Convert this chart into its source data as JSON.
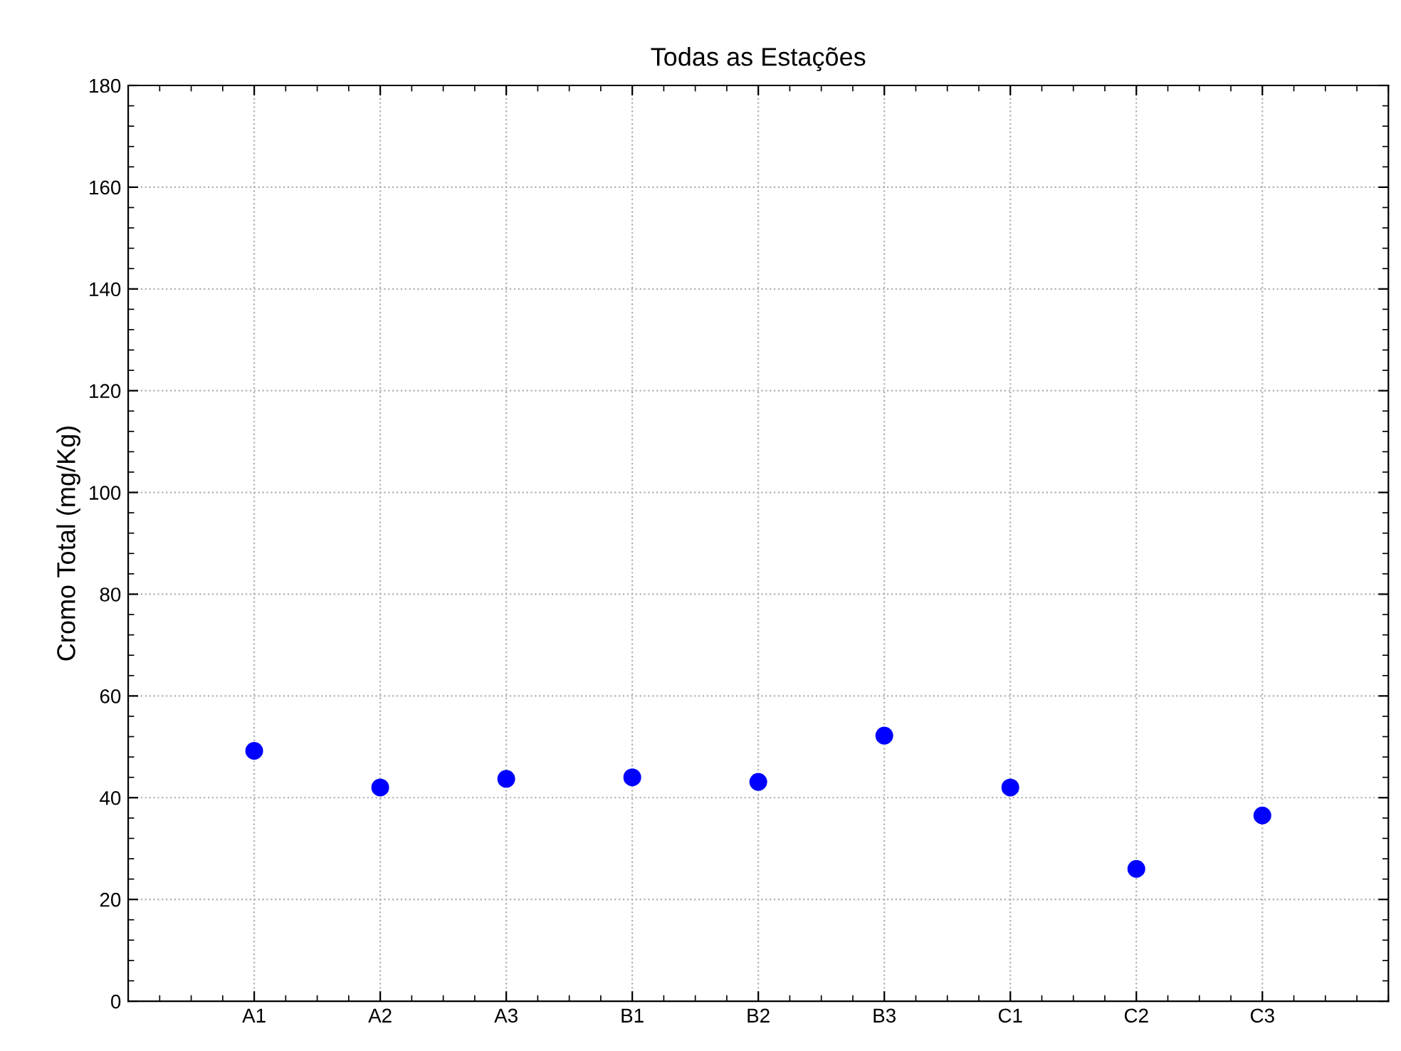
{
  "chart_data": {
    "type": "scatter",
    "title": "Todas as Estações",
    "ylabel": "Cromo Total (mg/Kg)",
    "categories": [
      "A1",
      "A2",
      "A3",
      "B1",
      "B2",
      "B3",
      "C1",
      "C2",
      "C3"
    ],
    "values": [
      49.2,
      42.0,
      43.7,
      44.0,
      43.1,
      52.2,
      42.0,
      26.0,
      36.5
    ],
    "color": "#0000ff",
    "marker": "circle",
    "ylim": [
      0,
      180
    ],
    "yticks": [
      0,
      20,
      40,
      60,
      80,
      100,
      120,
      140,
      160,
      180
    ],
    "grid": true
  }
}
